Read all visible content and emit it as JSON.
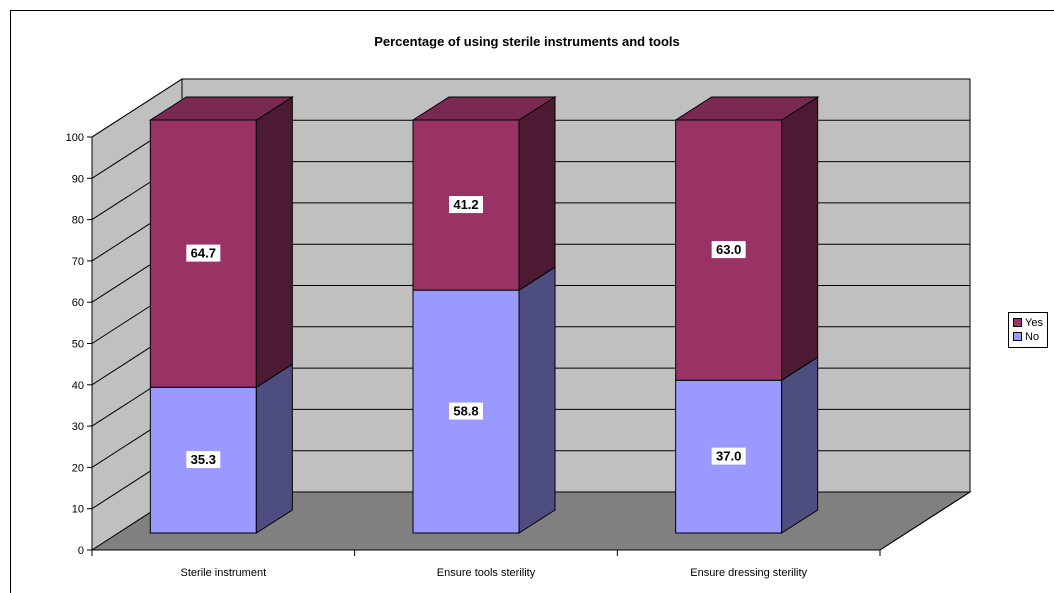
{
  "chart_data": {
    "type": "bar",
    "stacked": true,
    "three_d": true,
    "title": "Percentage of using sterile instruments and tools",
    "xlabel": "",
    "ylabel": "",
    "categories": [
      "Sterile instrument",
      "Ensure tools sterility",
      "Ensure dressing sterility"
    ],
    "series": [
      {
        "name": "No",
        "values": [
          35.3,
          58.8,
          37.0
        ],
        "labels": [
          "35.3",
          "58.8",
          "37.0"
        ],
        "color": "#9999FF",
        "side_color": "#4D4D80",
        "top_color": "#B3B3FF"
      },
      {
        "name": "Yes",
        "values": [
          64.7,
          41.2,
          63.0
        ],
        "labels": [
          "64.7",
          "41.2",
          "63.0"
        ],
        "color": "#993366",
        "side_color": "#4D1A33",
        "top_color": "#7A2952"
      }
    ],
    "legend_order": [
      "Yes",
      "No"
    ],
    "ylim": [
      0,
      100
    ],
    "yticks": [
      "0",
      "10",
      "20",
      "30",
      "40",
      "50",
      "60",
      "70",
      "80",
      "90",
      "100"
    ],
    "grid": true,
    "legend_position": "right",
    "wall_color": "#C0C0C0",
    "floor_color": "#808080"
  }
}
